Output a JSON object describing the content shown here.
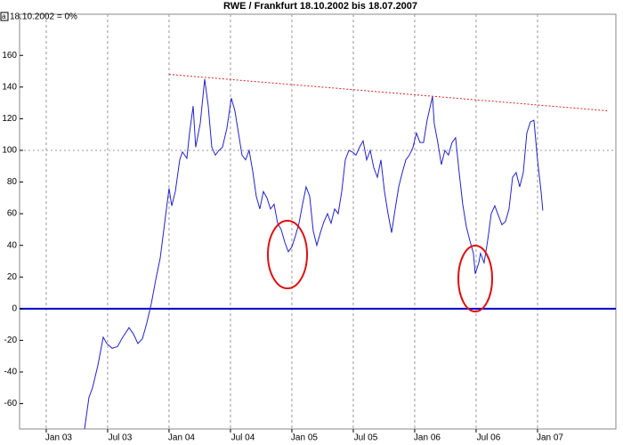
{
  "chart_data": {
    "type": "line",
    "title": "RWE / Frankfurt 18.10.2002 bis 18.07.2007",
    "xlim": [
      2002.783,
      2007.638
    ],
    "ylim": [
      -76,
      186
    ],
    "xticks": [
      {
        "value": 2003,
        "label": "Jan 03"
      },
      {
        "value": 2003.5,
        "label": "Jul 03"
      },
      {
        "value": 2004,
        "label": "Jan 04"
      },
      {
        "value": 2004.5,
        "label": "Jul 04"
      },
      {
        "value": 2005,
        "label": "Jan 05"
      },
      {
        "value": 2005.5,
        "label": "Jul 05"
      },
      {
        "value": 2006,
        "label": "Jan 06"
      },
      {
        "value": 2006.5,
        "label": "Jul 06"
      },
      {
        "value": 2007,
        "label": "Jan 07"
      }
    ],
    "yticks": [
      -60,
      -40,
      -20,
      0,
      20,
      40,
      60,
      80,
      100,
      120,
      140,
      160
    ],
    "reference_lines": [
      {
        "value": 0,
        "color": "#0000cc"
      },
      {
        "value": 100,
        "color": "#999999"
      }
    ],
    "series": [
      {
        "name": "18.10.2002 = 0%",
        "color": "#2222cc",
        "x": [
          2003.312,
          2003.348,
          2003.377,
          2003.42,
          2003.464,
          2003.493,
          2003.536,
          2003.58,
          2003.623,
          2003.674,
          2003.71,
          2003.746,
          2003.783,
          2003.819,
          2003.855,
          2003.891,
          2003.928,
          2003.964,
          2004.0,
          2004.022,
          2004.051,
          2004.087,
          2004.109,
          2004.145,
          2004.167,
          2004.196,
          2004.217,
          2004.254,
          2004.29,
          2004.319,
          2004.348,
          2004.377,
          2004.406,
          2004.435,
          2004.471,
          2004.507,
          2004.536,
          2004.565,
          2004.594,
          2004.623,
          2004.652,
          2004.681,
          2004.71,
          2004.739,
          2004.768,
          2004.797,
          2004.826,
          2004.855,
          2004.884,
          2004.913,
          2004.942,
          2004.971,
          2005.0,
          2005.029,
          2005.058,
          2005.087,
          2005.116,
          2005.145,
          2005.174,
          2005.203,
          2005.232,
          2005.261,
          2005.29,
          2005.319,
          2005.348,
          2005.377,
          2005.406,
          2005.435,
          2005.464,
          2005.493,
          2005.522,
          2005.551,
          2005.58,
          2005.609,
          2005.638,
          2005.667,
          2005.696,
          2005.725,
          2005.754,
          2005.783,
          2005.812,
          2005.841,
          2005.87,
          2005.899,
          2005.928,
          2005.957,
          2005.986,
          2006.014,
          2006.043,
          2006.072,
          2006.101,
          2006.13,
          2006.145,
          2006.159,
          2006.188,
          2006.217,
          2006.246,
          2006.275,
          2006.304,
          2006.333,
          2006.362,
          2006.391,
          2006.42,
          2006.449,
          2006.478,
          2006.493,
          2006.522,
          2006.536,
          2006.565,
          2006.594,
          2006.623,
          2006.652,
          2006.681,
          2006.71,
          2006.739,
          2006.768,
          2006.797,
          2006.826,
          2006.855,
          2006.884,
          2006.913,
          2006.942,
          2006.971,
          2007.0,
          2007.029,
          2007.043
        ],
        "values": [
          -76,
          -56,
          -50,
          -36,
          -18,
          -22,
          -25,
          -24,
          -18,
          -12,
          -16,
          -22,
          -19,
          -9,
          3,
          18,
          32,
          54,
          76,
          65,
          74,
          94,
          99,
          95,
          111,
          128,
          102,
          117,
          145,
          128,
          102,
          97,
          100,
          102,
          114,
          133,
          125,
          111,
          97,
          94,
          100,
          87,
          71,
          63,
          74,
          70,
          63,
          66,
          54,
          50,
          42,
          36,
          39,
          46,
          54,
          66,
          77,
          71,
          49,
          40,
          48,
          55,
          60,
          54,
          63,
          60,
          74,
          94,
          100,
          99,
          97,
          102,
          106,
          94,
          100,
          89,
          83,
          94,
          74,
          60,
          48,
          63,
          77,
          86,
          94,
          97,
          102,
          111,
          105,
          105,
          119,
          129,
          134,
          117,
          105,
          91,
          100,
          97,
          105,
          108,
          86,
          66,
          52,
          43,
          35,
          22,
          29,
          35,
          29,
          43,
          60,
          65,
          59,
          53,
          55,
          63,
          83,
          86,
          77,
          86,
          111,
          118,
          119,
          94,
          74,
          62
        ]
      },
      {
        "color": "#dd2222",
        "dashed": true,
        "x": [
          2004.0,
          2007.572
        ],
        "values": [
          148,
          125
        ]
      }
    ]
  }
}
